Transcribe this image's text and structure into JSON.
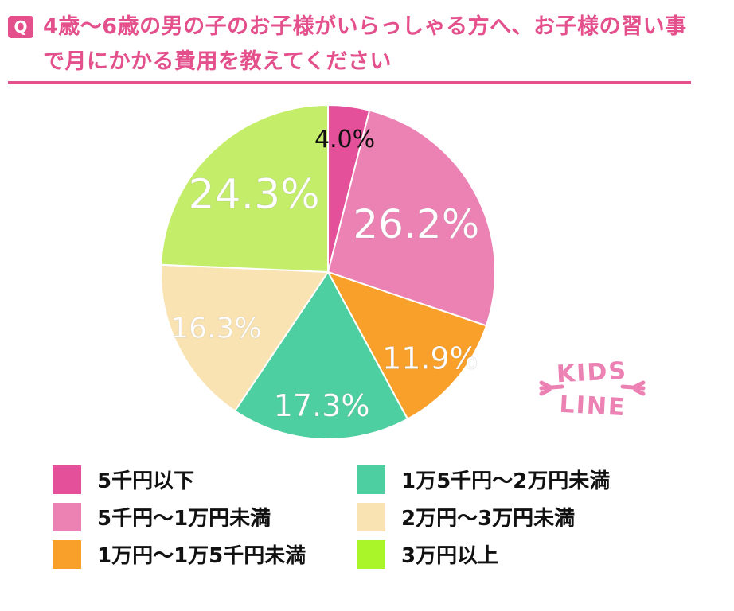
{
  "header": {
    "badge": "Q",
    "title": "4歳〜6歳の男の子のお子様がいらっしゃる方へ、お子様の習い事で月にかかる費用を教えてください"
  },
  "logo": {
    "line1": "KIDS",
    "line2": "LINE"
  },
  "chart_data": {
    "type": "pie",
    "title": "4歳〜6歳の男の子のお子様がいらっしゃる方へ、お子様の習い事で月にかかる費用を教えてください",
    "categories": [
      "5千円以下",
      "5千円〜1万円未満",
      "1万円〜1万5千円未満",
      "1万5千円〜2万円未満",
      "2万円〜3万円未満",
      "3万円以上"
    ],
    "values": [
      4.0,
      26.2,
      11.9,
      17.3,
      16.3,
      24.3
    ],
    "value_labels": [
      "4.0%",
      "26.2%",
      "11.9%",
      "17.3%",
      "16.3%",
      "24.3%"
    ],
    "colors": [
      "#e4509a",
      "#ec82b4",
      "#f9a02a",
      "#4ecfa2",
      "#fae3b2",
      "#c4ed6a"
    ],
    "legend_colors": [
      "#e4509a",
      "#ec82b4",
      "#f9a02a",
      "#4ecfa2",
      "#fae3b2",
      "#a9f52a"
    ],
    "label_colors": [
      "#111111",
      "#ffffff",
      "#ffffff",
      "#ffffff",
      "#ffffff",
      "#ffffff"
    ],
    "start": "12 o'clock",
    "direction": "clockwise",
    "legend": "bottom"
  }
}
